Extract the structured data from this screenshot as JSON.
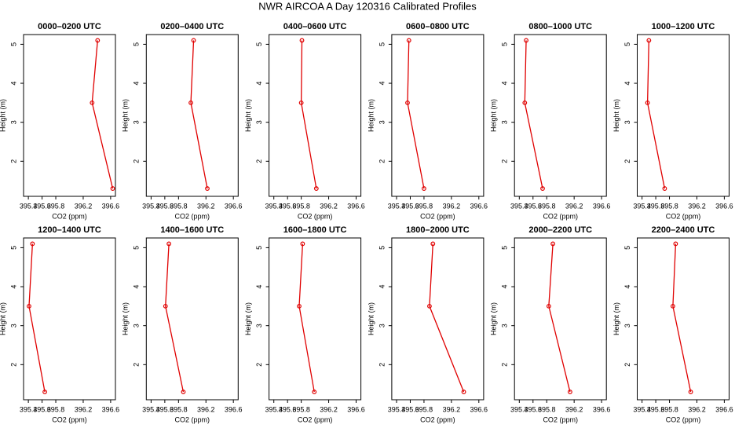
{
  "title": "NWR AIRCOA A  Day 120316  Calibrated Profiles",
  "chart_data": [
    {
      "type": "line",
      "title": "0000–0200 UTC",
      "x_label": "CO2 (ppm)",
      "y_label": "Height (m)",
      "color": "#e00000",
      "x": [
        396.41,
        396.33,
        396.63
      ],
      "values": [
        5.1,
        3.5,
        1.3
      ],
      "xlim": [
        395.33,
        396.67
      ],
      "ylim": [
        1.1,
        5.25
      ],
      "xticks": [
        395.4,
        395.6,
        395.8,
        396.2,
        396.6
      ],
      "yticks": [
        2,
        3,
        4,
        5
      ]
    },
    {
      "type": "line",
      "title": "0200–0400 UTC",
      "x_label": "CO2 (ppm)",
      "y_label": "Height (m)",
      "color": "#e00000",
      "x": [
        396.02,
        395.98,
        396.22
      ],
      "values": [
        5.1,
        3.5,
        1.3
      ],
      "xlim": [
        395.33,
        396.67
      ],
      "ylim": [
        1.1,
        5.25
      ],
      "xticks": [
        395.4,
        395.6,
        395.8,
        396.2,
        396.6
      ],
      "yticks": [
        2,
        3,
        4,
        5
      ]
    },
    {
      "type": "line",
      "title": "0400–0600 UTC",
      "x_label": "CO2 (ppm)",
      "y_label": "Height (m)",
      "color": "#e00000",
      "x": [
        395.81,
        395.8,
        396.02
      ],
      "values": [
        5.1,
        3.5,
        1.3
      ],
      "xlim": [
        395.33,
        396.67
      ],
      "ylim": [
        1.1,
        5.25
      ],
      "xticks": [
        395.4,
        395.6,
        395.8,
        396.2,
        396.6
      ],
      "yticks": [
        2,
        3,
        4,
        5
      ]
    },
    {
      "type": "line",
      "title": "0600–0800 UTC",
      "x_label": "CO2 (ppm)",
      "y_label": "Height (m)",
      "color": "#e00000",
      "x": [
        395.58,
        395.56,
        395.8
      ],
      "values": [
        5.1,
        3.5,
        1.3
      ],
      "xlim": [
        395.33,
        396.67
      ],
      "ylim": [
        1.1,
        5.25
      ],
      "xticks": [
        395.4,
        395.6,
        395.8,
        396.2,
        396.6
      ],
      "yticks": [
        2,
        3,
        4,
        5
      ]
    },
    {
      "type": "line",
      "title": "0800–1000 UTC",
      "x_label": "CO2 (ppm)",
      "y_label": "Height (m)",
      "color": "#e00000",
      "x": [
        395.5,
        395.48,
        395.74
      ],
      "values": [
        5.1,
        3.5,
        1.3
      ],
      "xlim": [
        395.33,
        396.67
      ],
      "ylim": [
        1.1,
        5.25
      ],
      "xticks": [
        395.4,
        395.6,
        395.8,
        396.2,
        396.6
      ],
      "yticks": [
        2,
        3,
        4,
        5
      ]
    },
    {
      "type": "line",
      "title": "1000–1200 UTC",
      "x_label": "CO2 (ppm)",
      "y_label": "Height (m)",
      "color": "#e00000",
      "x": [
        395.5,
        395.48,
        395.73
      ],
      "values": [
        5.1,
        3.5,
        1.3
      ],
      "xlim": [
        395.33,
        396.67
      ],
      "ylim": [
        1.1,
        5.25
      ],
      "xticks": [
        395.4,
        395.6,
        395.8,
        396.2,
        396.6
      ],
      "yticks": [
        2,
        3,
        4,
        5
      ]
    },
    {
      "type": "line",
      "title": "1200–1400 UTC",
      "x_label": "CO2 (ppm)",
      "y_label": "Height (m)",
      "color": "#e00000",
      "x": [
        395.46,
        395.41,
        395.64
      ],
      "values": [
        5.1,
        3.5,
        1.3
      ],
      "xlim": [
        395.33,
        396.67
      ],
      "ylim": [
        1.1,
        5.25
      ],
      "xticks": [
        395.4,
        395.6,
        395.8,
        396.2,
        396.6
      ],
      "yticks": [
        2,
        3,
        4,
        5
      ]
    },
    {
      "type": "line",
      "title": "1400–1600 UTC",
      "x_label": "CO2 (ppm)",
      "y_label": "Height (m)",
      "color": "#e00000",
      "x": [
        395.66,
        395.61,
        395.87
      ],
      "values": [
        5.1,
        3.5,
        1.3
      ],
      "xlim": [
        395.33,
        396.67
      ],
      "ylim": [
        1.1,
        5.25
      ],
      "xticks": [
        395.4,
        395.6,
        395.8,
        396.2,
        396.6
      ],
      "yticks": [
        2,
        3,
        4,
        5
      ]
    },
    {
      "type": "line",
      "title": "1600–1800 UTC",
      "x_label": "CO2 (ppm)",
      "y_label": "Height (m)",
      "color": "#e00000",
      "x": [
        395.82,
        395.77,
        395.99
      ],
      "values": [
        5.1,
        3.5,
        1.3
      ],
      "xlim": [
        395.33,
        396.67
      ],
      "ylim": [
        1.1,
        5.25
      ],
      "xticks": [
        395.4,
        395.6,
        395.8,
        396.2,
        396.6
      ],
      "yticks": [
        2,
        3,
        4,
        5
      ]
    },
    {
      "type": "line",
      "title": "1800–2000 UTC",
      "x_label": "CO2 (ppm)",
      "y_label": "Height (m)",
      "color": "#e00000",
      "x": [
        395.93,
        395.88,
        396.38
      ],
      "values": [
        5.1,
        3.5,
        1.3
      ],
      "xlim": [
        395.33,
        396.67
      ],
      "ylim": [
        1.1,
        5.25
      ],
      "xticks": [
        395.4,
        395.6,
        395.8,
        396.2,
        396.6
      ],
      "yticks": [
        2,
        3,
        4,
        5
      ]
    },
    {
      "type": "line",
      "title": "2000–2200 UTC",
      "x_label": "CO2 (ppm)",
      "y_label": "Height (m)",
      "color": "#e00000",
      "x": [
        395.89,
        395.83,
        396.14
      ],
      "values": [
        5.1,
        3.5,
        1.3
      ],
      "xlim": [
        395.33,
        396.67
      ],
      "ylim": [
        1.1,
        5.25
      ],
      "xticks": [
        395.4,
        395.6,
        395.8,
        396.2,
        396.6
      ],
      "yticks": [
        2,
        3,
        4,
        5
      ]
    },
    {
      "type": "line",
      "title": "2200–2400 UTC",
      "x_label": "CO2 (ppm)",
      "y_label": "Height (m)",
      "color": "#e00000",
      "x": [
        395.89,
        395.85,
        396.11
      ],
      "values": [
        5.1,
        3.5,
        1.3
      ],
      "xlim": [
        395.33,
        396.67
      ],
      "ylim": [
        1.1,
        5.25
      ],
      "xticks": [
        395.4,
        395.6,
        395.8,
        396.2,
        396.6
      ],
      "yticks": [
        2,
        3,
        4,
        5
      ]
    }
  ]
}
